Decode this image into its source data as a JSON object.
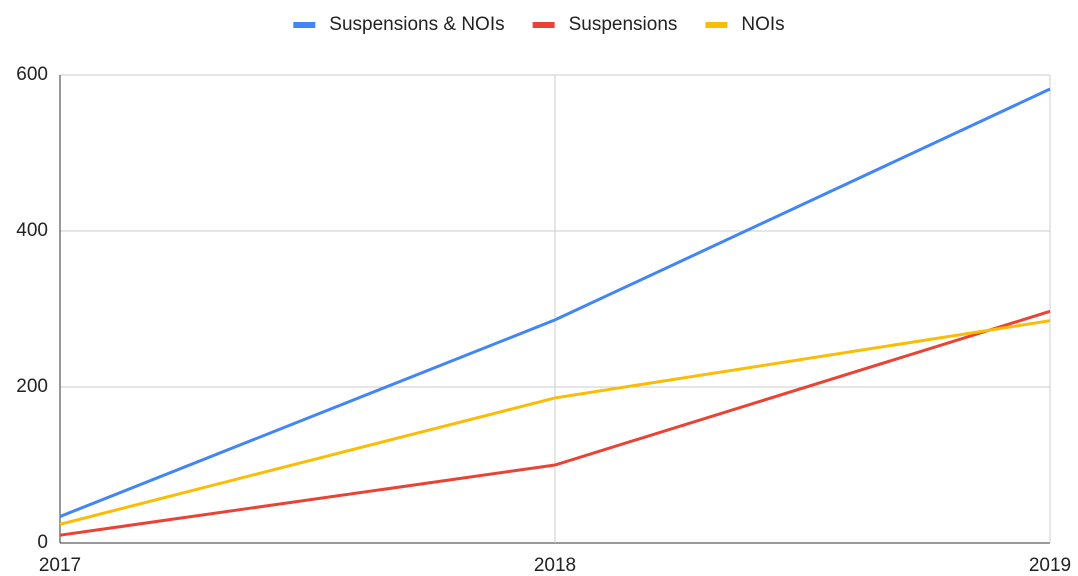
{
  "chart_data": {
    "type": "line",
    "x": [
      2017,
      2018,
      2019
    ],
    "xlim": [
      2017,
      2019
    ],
    "xticks": [
      2017,
      2018,
      2019
    ],
    "ylim": [
      0,
      600
    ],
    "yticks": [
      0,
      200,
      400,
      600
    ],
    "grid": true,
    "legend": "top",
    "series": [
      {
        "name": "Suspensions & NOIs",
        "color": "#4285f4",
        "values": [
          34,
          286,
          582
        ]
      },
      {
        "name": "Suspensions",
        "color": "#ea4335",
        "values": [
          10,
          100,
          297
        ]
      },
      {
        "name": "NOIs",
        "color": "#fbbc04",
        "values": [
          24,
          186,
          285
        ]
      }
    ]
  }
}
